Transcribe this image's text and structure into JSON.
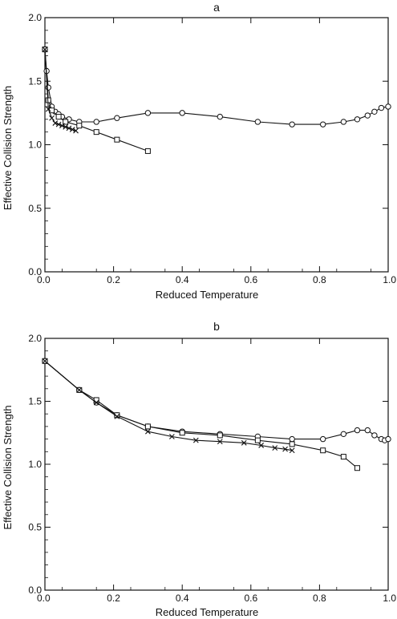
{
  "chart_data": [
    {
      "type": "line",
      "title": "a",
      "xlabel": "Reduced Temperature",
      "ylabel": "Effective Collision Strength",
      "xlim": [
        0.0,
        1.0
      ],
      "ylim": [
        0.0,
        2.0
      ],
      "xticks": [
        "0.0",
        "0.2",
        "0.4",
        "0.6",
        "0.8",
        "1.0"
      ],
      "yticks": [
        "0.0",
        "0.5",
        "1.0",
        "1.5",
        "2.0"
      ],
      "grid": false,
      "series": [
        {
          "marker": "circle",
          "x": [
            0.0,
            0.005,
            0.01,
            0.02,
            0.03,
            0.04,
            0.05,
            0.07,
            0.1,
            0.15,
            0.21,
            0.3,
            0.4,
            0.51,
            0.62,
            0.72,
            0.81,
            0.87,
            0.91,
            0.94,
            0.96,
            0.98,
            1.0
          ],
          "y": [
            1.75,
            1.58,
            1.45,
            1.3,
            1.26,
            1.24,
            1.22,
            1.2,
            1.18,
            1.18,
            1.21,
            1.25,
            1.25,
            1.22,
            1.18,
            1.16,
            1.16,
            1.18,
            1.2,
            1.23,
            1.26,
            1.29,
            1.3
          ]
        },
        {
          "marker": "square",
          "x": [
            0.0,
            0.01,
            0.02,
            0.04,
            0.06,
            0.1,
            0.15,
            0.21,
            0.3
          ],
          "y": [
            1.75,
            1.35,
            1.27,
            1.22,
            1.18,
            1.15,
            1.1,
            1.04,
            0.95
          ]
        },
        {
          "marker": "cross",
          "x": [
            0.0,
            0.01,
            0.02,
            0.03,
            0.04,
            0.05,
            0.06,
            0.07,
            0.08,
            0.09
          ],
          "y": [
            1.75,
            1.28,
            1.21,
            1.17,
            1.16,
            1.15,
            1.14,
            1.13,
            1.12,
            1.11
          ]
        }
      ]
    },
    {
      "type": "line",
      "title": "b",
      "xlabel": "Reduced Temperature",
      "ylabel": "Effective Collision Strength",
      "xlim": [
        0.0,
        1.0
      ],
      "ylim": [
        0.0,
        2.0
      ],
      "xticks": [
        "0.0",
        "0.2",
        "0.4",
        "0.6",
        "0.8",
        "1.0"
      ],
      "yticks": [
        "0.0",
        "0.5",
        "1.0",
        "1.5",
        "2.0"
      ],
      "grid": false,
      "series": [
        {
          "marker": "circle",
          "x": [
            0.0,
            0.1,
            0.15,
            0.21,
            0.3,
            0.4,
            0.51,
            0.62,
            0.72,
            0.81,
            0.87,
            0.91,
            0.94,
            0.96,
            0.98,
            0.99,
            1.0
          ],
          "y": [
            1.82,
            1.59,
            1.49,
            1.39,
            1.3,
            1.26,
            1.24,
            1.22,
            1.2,
            1.2,
            1.24,
            1.27,
            1.27,
            1.23,
            1.2,
            1.19,
            1.2
          ]
        },
        {
          "marker": "square",
          "x": [
            0.0,
            0.1,
            0.15,
            0.21,
            0.3,
            0.4,
            0.51,
            0.62,
            0.72,
            0.81,
            0.87,
            0.91
          ],
          "y": [
            1.82,
            1.59,
            1.51,
            1.39,
            1.3,
            1.25,
            1.23,
            1.19,
            1.16,
            1.11,
            1.06,
            0.97
          ]
        },
        {
          "marker": "cross",
          "x": [
            0.0,
            0.1,
            0.15,
            0.21,
            0.3,
            0.37,
            0.44,
            0.51,
            0.58,
            0.63,
            0.67,
            0.7,
            0.72
          ],
          "y": [
            1.82,
            1.59,
            1.49,
            1.38,
            1.26,
            1.22,
            1.19,
            1.18,
            1.17,
            1.15,
            1.13,
            1.12,
            1.11
          ]
        }
      ]
    }
  ]
}
